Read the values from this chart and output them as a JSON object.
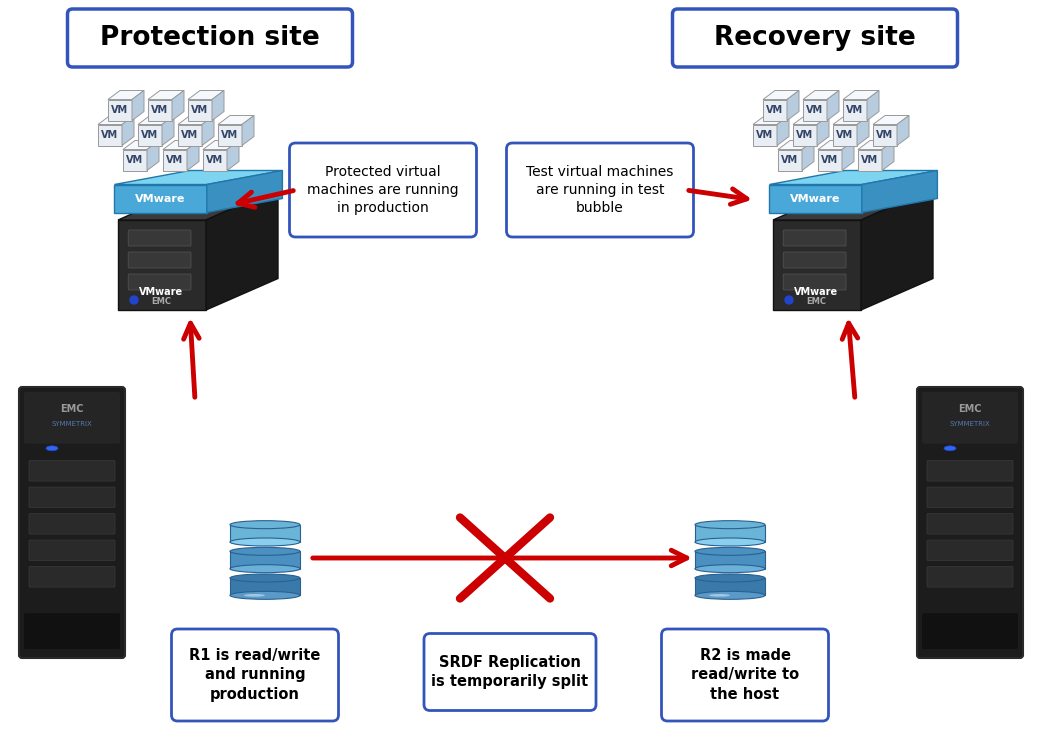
{
  "background_color": "#ffffff",
  "protection_site_label": "Protection site",
  "recovery_site_label": "Recovery site",
  "box1_text": "Protected virtual\nmachines are running\nin production",
  "box2_text": "Test virtual machines\nare running in test\nbubble",
  "r1_label": "R1 is read/write\nand running\nproduction",
  "r2_label": "R2 is made\nread/write to\nthe host",
  "srdf_label": "SRDF Replication\nis temporarily split",
  "arrow_color": "#cc0000",
  "box_border_color": "#3355bb",
  "box_fill_color": "#ffffff",
  "vmware_color_top": "#7dd4f0",
  "vmware_color_side": "#4aa8d8",
  "vm_front": "#e8eef4",
  "vm_top": "#f5f8fc",
  "vm_right": "#b8cce0",
  "server_body": "#1c1c1c",
  "server_mid": "#2e2e2e",
  "server_light": "#2244cc"
}
